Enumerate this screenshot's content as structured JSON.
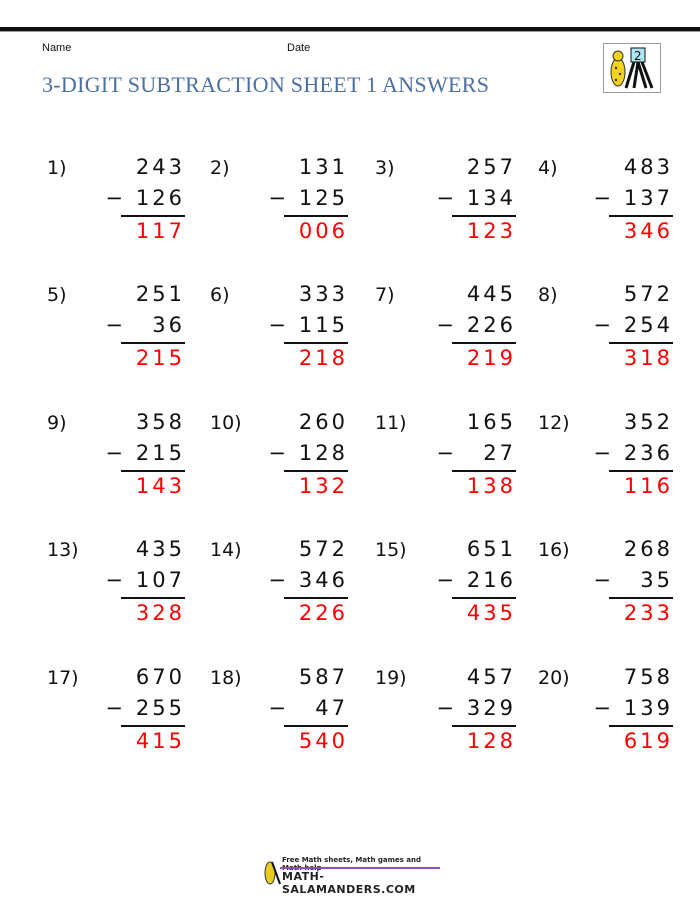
{
  "header": {
    "name_label": "Name",
    "date_label": "Date",
    "title": "3-DIGIT SUBTRACTION SHEET 1 ANSWERS",
    "logo_text": "2"
  },
  "colors": {
    "title": "#4a6fa5",
    "answer": "#ff0000"
  },
  "problems": [
    {
      "label": "1)",
      "top": "243",
      "bottom": "126",
      "answer": "117"
    },
    {
      "label": "2)",
      "top": "131",
      "bottom": "125",
      "answer": "006"
    },
    {
      "label": "3)",
      "top": "257",
      "bottom": "134",
      "answer": "123"
    },
    {
      "label": "4)",
      "top": "483",
      "bottom": "137",
      "answer": "346"
    },
    {
      "label": "5)",
      "top": "251",
      "bottom": "36",
      "answer": "215"
    },
    {
      "label": "6)",
      "top": "333",
      "bottom": "115",
      "answer": "218"
    },
    {
      "label": "7)",
      "top": "445",
      "bottom": "226",
      "answer": "219"
    },
    {
      "label": "8)",
      "top": "572",
      "bottom": "254",
      "answer": "318"
    },
    {
      "label": "9)",
      "top": "358",
      "bottom": "215",
      "answer": "143"
    },
    {
      "label": "10)",
      "top": "260",
      "bottom": "128",
      "answer": "132"
    },
    {
      "label": "11)",
      "top": "165",
      "bottom": "27",
      "answer": "138"
    },
    {
      "label": "12)",
      "top": "352",
      "bottom": "236",
      "answer": "116"
    },
    {
      "label": "13)",
      "top": "435",
      "bottom": "107",
      "answer": "328"
    },
    {
      "label": "14)",
      "top": "572",
      "bottom": "346",
      "answer": "226"
    },
    {
      "label": "15)",
      "top": "651",
      "bottom": "216",
      "answer": "435"
    },
    {
      "label": "16)",
      "top": "268",
      "bottom": "35",
      "answer": "233"
    },
    {
      "label": "17)",
      "top": "670",
      "bottom": "255",
      "answer": "415"
    },
    {
      "label": "18)",
      "top": "587",
      "bottom": "47",
      "answer": "540"
    },
    {
      "label": "19)",
      "top": "457",
      "bottom": "329",
      "answer": "128"
    },
    {
      "label": "20)",
      "top": "758",
      "bottom": "139",
      "answer": "619"
    }
  ],
  "operator": "−",
  "footer": {
    "tagline": "Free Math sheets, Math games and Math help",
    "site": "MATH-SALAMANDERS.COM"
  }
}
